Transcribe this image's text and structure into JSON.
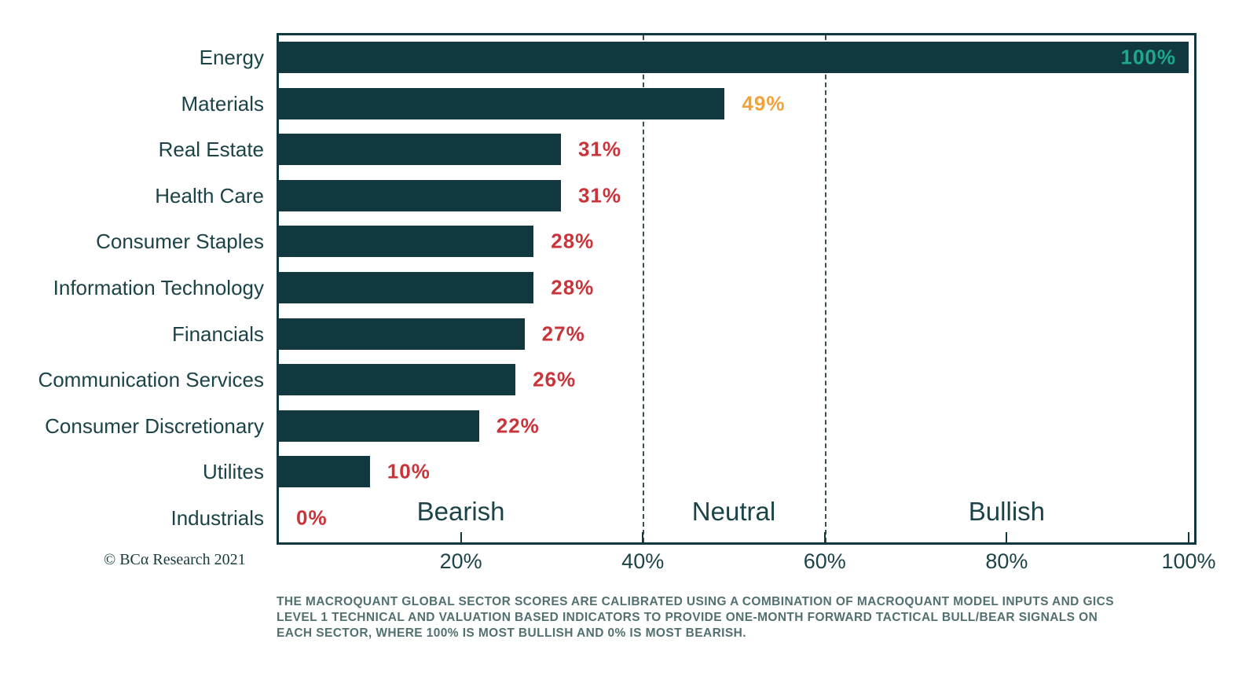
{
  "chart_data": {
    "type": "bar",
    "orientation": "horizontal",
    "title": "",
    "xlabel": "",
    "ylabel": "",
    "xlim": [
      0,
      100
    ],
    "categories": [
      "Energy",
      "Materials",
      "Real Estate",
      "Health Care",
      "Consumer Staples",
      "Information Technology",
      "Financials",
      "Communication Services",
      "Consumer Discretionary",
      "Utilites",
      "Industrials"
    ],
    "values": [
      100,
      49,
      31,
      31,
      28,
      28,
      27,
      26,
      22,
      10,
      0
    ],
    "value_labels": [
      "100%",
      "49%",
      "31%",
      "31%",
      "28%",
      "28%",
      "27%",
      "26%",
      "22%",
      "10%",
      "0%"
    ],
    "value_label_colors": [
      "#1CA98C",
      "#F0A33C",
      "#C9333A",
      "#C9333A",
      "#C9333A",
      "#C9333A",
      "#C9333A",
      "#C9333A",
      "#C9333A",
      "#C9333A",
      "#C9333A"
    ],
    "value_label_inside": [
      true,
      false,
      false,
      false,
      false,
      false,
      false,
      false,
      false,
      false,
      false
    ],
    "bar_color": "#12383F",
    "x_ticks": [
      {
        "value": 20,
        "label": "20%"
      },
      {
        "value": 40,
        "label": "40%"
      },
      {
        "value": 60,
        "label": "60%"
      },
      {
        "value": 80,
        "label": "80%"
      },
      {
        "value": 100,
        "label": "100%"
      }
    ],
    "zone_lines": [
      40,
      60
    ],
    "zones": [
      {
        "label": "Bearish",
        "center": 20
      },
      {
        "label": "Neutral",
        "center": 50
      },
      {
        "label": "Bullish",
        "center": 80
      }
    ],
    "grid": "vertical dashed lines at 40% and 60%",
    "legend": "none"
  },
  "copyright": "© BCα Research 2021",
  "footnote": {
    "lines": [
      "THE MACROQUANT GLOBAL SECTOR SCORES ARE CALIBRATED USING A COMBINATION OF MACROQUANT MODEL INPUTS AND GICS",
      "LEVEL 1 TECHNICAL AND VALUATION BASED INDICATORS TO PROVIDE ONE-MONTH FORWARD TACTICAL BULL/BEAR SIGNALS ON",
      "EACH SECTOR, WHERE 100% IS MOST BULLISH AND 0% IS MOST BEARISH."
    ]
  },
  "colors": {
    "bar": "#12383F",
    "axis": "#12383F",
    "category_text": "#1C4448",
    "grid_line": "#3A5153",
    "bullish_value": "#1CA98C",
    "neutral_value": "#F0A33C",
    "bearish_value": "#C9333A",
    "footnote_text": "#51706F",
    "background": "#FFFFFF"
  }
}
